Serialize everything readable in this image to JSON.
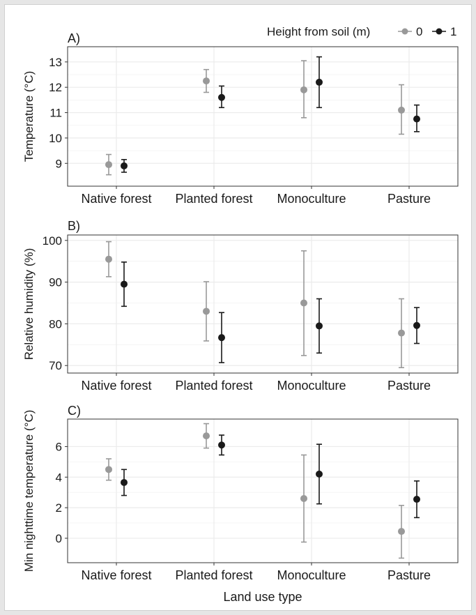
{
  "legend": {
    "title": "Height from soil (m)",
    "placement": "top-right",
    "items": [
      {
        "label": "0",
        "color": "#999999"
      },
      {
        "label": "1",
        "color": "#1a1a1a"
      }
    ]
  },
  "x_axis_label": "Land use type",
  "colors": {
    "series_0": "#999999",
    "series_1": "#1a1a1a",
    "grid": "#ebebeb",
    "panel_border": "#333333"
  },
  "chart_data": [
    {
      "type": "scatter",
      "panel_label": "A)",
      "title": "",
      "xlabel": "",
      "ylabel": "Temperature (°C)",
      "categories": [
        "Native forest",
        "Planted forest",
        "Monoculture",
        "Pasture"
      ],
      "ylim": [
        8.1,
        13.6
      ],
      "yticks": [
        9,
        10,
        11,
        12,
        13
      ],
      "grid": true,
      "series": [
        {
          "name": "0",
          "values": [
            8.95,
            12.25,
            11.9,
            11.1
          ],
          "lower": [
            8.55,
            11.8,
            10.8,
            10.15
          ],
          "upper": [
            9.35,
            12.7,
            13.05,
            12.1
          ]
        },
        {
          "name": "1",
          "values": [
            8.9,
            11.6,
            12.2,
            10.75
          ],
          "lower": [
            8.65,
            11.2,
            11.2,
            10.25
          ],
          "upper": [
            9.15,
            12.05,
            13.2,
            11.3
          ]
        }
      ]
    },
    {
      "type": "scatter",
      "panel_label": "B)",
      "title": "",
      "xlabel": "",
      "ylabel": "Relative humidity (%)",
      "categories": [
        "Native forest",
        "Planted forest",
        "Monoculture",
        "Pasture"
      ],
      "ylim": [
        68.2,
        101.3
      ],
      "yticks": [
        70,
        80,
        90,
        100
      ],
      "grid": true,
      "series": [
        {
          "name": "0",
          "values": [
            95.5,
            83.0,
            85.0,
            77.8
          ],
          "lower": [
            91.3,
            75.9,
            72.4,
            69.5
          ],
          "upper": [
            99.7,
            90.1,
            97.5,
            86.0
          ]
        },
        {
          "name": "1",
          "values": [
            89.5,
            76.7,
            79.5,
            79.6
          ],
          "lower": [
            84.2,
            70.7,
            73.0,
            75.3
          ],
          "upper": [
            94.8,
            82.7,
            86.0,
            83.9
          ]
        }
      ]
    },
    {
      "type": "scatter",
      "panel_label": "C)",
      "title": "",
      "xlabel": "",
      "ylabel": "Min nighttime temperature (°C)",
      "categories": [
        "Native forest",
        "Planted forest",
        "Monoculture",
        "Pasture"
      ],
      "ylim": [
        -1.6,
        7.8
      ],
      "yticks": [
        0,
        2,
        4,
        6
      ],
      "grid": true,
      "series": [
        {
          "name": "0",
          "values": [
            4.5,
            6.7,
            2.6,
            0.45
          ],
          "lower": [
            3.8,
            5.9,
            -0.25,
            -1.3
          ],
          "upper": [
            5.2,
            7.5,
            5.45,
            2.15
          ]
        },
        {
          "name": "1",
          "values": [
            3.65,
            6.1,
            4.2,
            2.55
          ],
          "lower": [
            2.8,
            5.45,
            2.25,
            1.35
          ],
          "upper": [
            4.5,
            6.75,
            6.15,
            3.75
          ]
        }
      ]
    }
  ]
}
